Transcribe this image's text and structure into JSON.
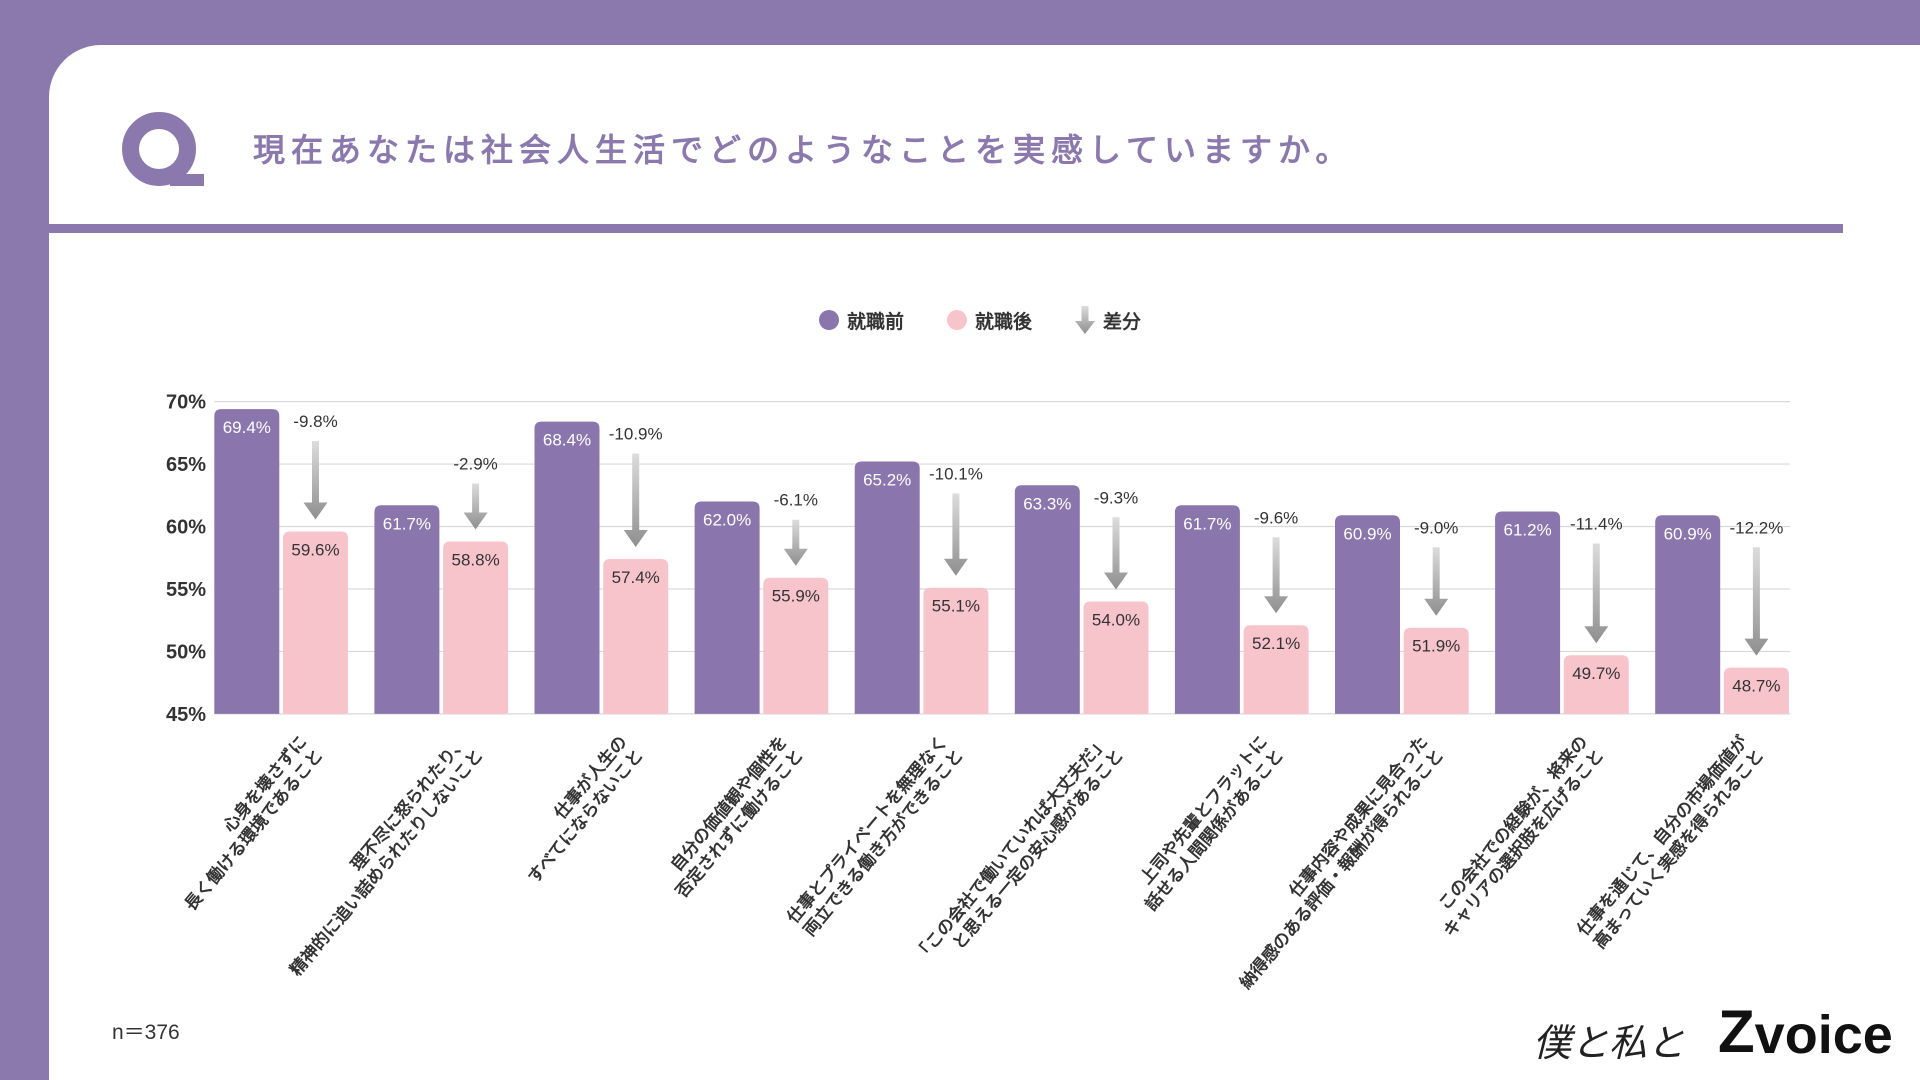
{
  "header": {
    "title": "現在あなたは社会人生活でどのようなことを実感していますか。",
    "icon": "q-letter-icon"
  },
  "colors": {
    "brand": "#8b79ad",
    "before": "#8a76ad",
    "after": "#f8c4cc",
    "diff_arrow": "#8f8f8f",
    "text": "#333333"
  },
  "chart_data": {
    "type": "bar",
    "categories": [
      [
        "心身を壊さずに",
        "長く働ける環境であること"
      ],
      [
        "理不尽に怒られたり、",
        "精神的に追い詰められたりしないこと"
      ],
      [
        "仕事が人生の",
        "すべてにならないこと"
      ],
      [
        "自分の価値観や個性を",
        "否定されずに働けること"
      ],
      [
        "仕事とプライベートを無理なく",
        "両立できる働き方ができること"
      ],
      [
        "「この会社で働いていれば大丈夫だ」",
        "と思える一定の安心感があること"
      ],
      [
        "上司や先輩とフラットに",
        "話せる人間関係があること"
      ],
      [
        "仕事内容や成果に見合った",
        "納得感のある評価・報酬が得られること"
      ],
      [
        "この会社での経験が、将来の",
        "キャリアの選択肢を広げること"
      ],
      [
        "仕事を通じて、自分の市場価値が",
        "高まっていく実感を得られること"
      ]
    ],
    "series": [
      {
        "name": "就職前",
        "values": [
          69.4,
          61.7,
          68.4,
          62.0,
          65.2,
          63.3,
          61.7,
          60.9,
          61.2,
          60.9
        ]
      },
      {
        "name": "就職後",
        "values": [
          59.6,
          58.8,
          57.4,
          55.9,
          55.1,
          54.0,
          52.1,
          51.9,
          49.7,
          48.7
        ]
      }
    ],
    "difference": {
      "name": "差分",
      "values": [
        -9.8,
        -2.9,
        -10.9,
        -6.1,
        -10.1,
        -9.3,
        -9.6,
        -9.0,
        -11.4,
        -12.2
      ],
      "marker": "down-arrow-icon"
    },
    "unit": "%",
    "ylim": [
      45,
      70
    ],
    "y_ticks": [
      70,
      65,
      60,
      55,
      50,
      45
    ],
    "grid": true,
    "legend_position": "top-center"
  },
  "footer": {
    "sample_size": "n＝376",
    "logo": {
      "script": "僕と私と",
      "mark": "Z",
      "word": "voice"
    }
  }
}
